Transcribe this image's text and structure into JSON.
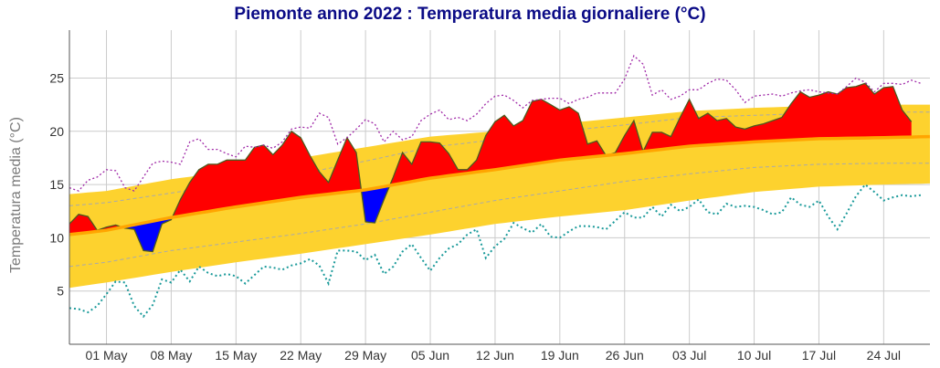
{
  "chart_data": {
    "type": "area",
    "title": "Piemonte anno 2022 : Temperatura media giornaliere (°C)",
    "xlabel": "",
    "ylabel": "Temperatura media (°C)",
    "ylim": [
      0,
      29.5
    ],
    "xlim": [
      "2022-04-27",
      "2022-07-29"
    ],
    "grid": true,
    "y_ticks": [
      5,
      10,
      15,
      20,
      25
    ],
    "x_ticks": [
      {
        "date": "2022-05-01",
        "label": "01 May"
      },
      {
        "date": "2022-05-08",
        "label": "08 May"
      },
      {
        "date": "2022-05-15",
        "label": "15 May"
      },
      {
        "date": "2022-05-22",
        "label": "22 May"
      },
      {
        "date": "2022-05-29",
        "label": "29 May"
      },
      {
        "date": "2022-06-05",
        "label": "05 Jun"
      },
      {
        "date": "2022-06-12",
        "label": "12 Jun"
      },
      {
        "date": "2022-06-19",
        "label": "19 Jun"
      },
      {
        "date": "2022-06-26",
        "label": "26 Jun"
      },
      {
        "date": "2022-07-03",
        "label": "03 Jul"
      },
      {
        "date": "2022-07-10",
        "label": "10 Jul"
      },
      {
        "date": "2022-07-17",
        "label": "17 Jul"
      },
      {
        "date": "2022-07-24",
        "label": "24 Jul"
      }
    ],
    "colors": {
      "band": "#fdd22e",
      "median": "#ffa500",
      "above": "#ff0000",
      "below": "#0000ff",
      "mean_line": "#4b5a1e",
      "max_line": "#a02aa8",
      "min_line": "#1a9a9a",
      "percentile_dashed": "#aaaaaa",
      "grid": "#cccccc"
    },
    "dates": [
      "2022-04-27",
      "2022-04-28",
      "2022-04-29",
      "2022-04-30",
      "2022-05-01",
      "2022-05-02",
      "2022-05-03",
      "2022-05-04",
      "2022-05-05",
      "2022-05-06",
      "2022-05-07",
      "2022-05-08",
      "2022-05-09",
      "2022-05-10",
      "2022-05-11",
      "2022-05-12",
      "2022-05-13",
      "2022-05-14",
      "2022-05-15",
      "2022-05-16",
      "2022-05-17",
      "2022-05-18",
      "2022-05-19",
      "2022-05-20",
      "2022-05-21",
      "2022-05-22",
      "2022-05-23",
      "2022-05-24",
      "2022-05-25",
      "2022-05-26",
      "2022-05-27",
      "2022-05-28",
      "2022-05-29",
      "2022-05-30",
      "2022-05-31",
      "2022-06-01",
      "2022-06-02",
      "2022-06-03",
      "2022-06-04",
      "2022-06-05",
      "2022-06-06",
      "2022-06-07",
      "2022-06-08",
      "2022-06-09",
      "2022-06-10",
      "2022-06-11",
      "2022-06-12",
      "2022-06-13",
      "2022-06-14",
      "2022-06-15",
      "2022-06-16",
      "2022-06-17",
      "2022-06-18",
      "2022-06-19",
      "2022-06-20",
      "2022-06-21",
      "2022-06-22",
      "2022-06-23",
      "2022-06-24",
      "2022-06-25",
      "2022-06-26",
      "2022-06-27",
      "2022-06-28",
      "2022-06-29",
      "2022-06-30",
      "2022-07-01",
      "2022-07-02",
      "2022-07-03",
      "2022-07-04",
      "2022-07-05",
      "2022-07-06",
      "2022-07-07",
      "2022-07-08",
      "2022-07-09",
      "2022-07-10",
      "2022-07-11",
      "2022-07-12",
      "2022-07-13",
      "2022-07-14",
      "2022-07-15",
      "2022-07-16",
      "2022-07-17",
      "2022-07-18",
      "2022-07-19",
      "2022-07-20",
      "2022-07-21",
      "2022-07-22",
      "2022-07-23",
      "2022-07-24",
      "2022-07-25",
      "2022-07-26",
      "2022-07-27",
      "2022-07-28"
    ],
    "series": [
      {
        "key": "mean",
        "values": [
          11.3,
          12.2,
          12.0,
          10.7,
          11.0,
          11.2,
          10.9,
          10.8,
          8.8,
          8.7,
          11.3,
          11.7,
          13.6,
          15.2,
          16.4,
          16.9,
          16.9,
          17.3,
          17.3,
          17.3,
          18.5,
          18.7,
          17.8,
          18.7,
          20.0,
          19.4,
          17.7,
          16.2,
          15.2,
          17.3,
          19.4,
          18.0,
          11.5,
          11.4,
          13.6,
          15.7,
          18.0,
          16.9,
          19.0,
          19.0,
          18.9,
          17.9,
          16.4,
          16.4,
          17.3,
          19.6,
          20.9,
          21.5,
          20.5,
          21.0,
          22.8,
          23.0,
          22.5,
          22.0,
          22.3,
          21.7,
          18.8,
          19.1,
          17.7,
          18.0,
          19.6,
          21.0,
          18.1,
          19.9,
          19.9,
          19.5,
          21.3,
          23.0,
          21.2,
          21.7,
          21.0,
          21.2,
          20.4,
          20.2,
          20.5,
          20.7,
          21.0,
          21.3,
          22.6,
          23.7,
          23.2,
          23.4,
          23.7,
          23.5,
          24.1,
          24.2,
          24.5,
          23.5,
          24.1,
          24.2,
          22.0,
          20.9,
          null
        ]
      },
      {
        "key": "max",
        "values": [
          14.7,
          14.4,
          15.4,
          15.7,
          16.4,
          16.3,
          14.7,
          14.4,
          15.7,
          17.0,
          17.2,
          17.1,
          16.9,
          19.0,
          19.3,
          18.3,
          18.3,
          17.9,
          17.6,
          18.6,
          18.5,
          18.7,
          18.4,
          19.0,
          20.2,
          20.4,
          20.3,
          21.7,
          21.3,
          18.8,
          19.4,
          20.2,
          21.1,
          20.7,
          19.0,
          20.0,
          19.2,
          19.5,
          21.0,
          21.6,
          22.0,
          21.1,
          21.3,
          21.0,
          21.6,
          22.6,
          23.3,
          23.4,
          22.9,
          22.2,
          22.9,
          23.0,
          23.1,
          23.1,
          22.6,
          23.0,
          23.2,
          23.6,
          23.6,
          23.6,
          24.9,
          27.1,
          26.3,
          23.4,
          23.9,
          23.0,
          23.3,
          23.9,
          23.9,
          24.5,
          24.9,
          24.8,
          23.9,
          22.7,
          23.3,
          23.4,
          23.5,
          23.3,
          23.6,
          23.8,
          23.9,
          23.7,
          23.6,
          23.5,
          24.2,
          25.0,
          24.6,
          23.7,
          24.5,
          24.5,
          24.4,
          24.8,
          24.5
        ]
      },
      {
        "key": "min",
        "values": [
          3.4,
          3.3,
          3.0,
          3.6,
          4.7,
          5.9,
          5.8,
          3.6,
          2.6,
          3.7,
          6.1,
          5.8,
          7.0,
          5.9,
          7.3,
          6.7,
          6.4,
          6.6,
          6.4,
          5.7,
          6.5,
          7.3,
          7.2,
          7.0,
          7.4,
          7.6,
          8.0,
          7.4,
          5.7,
          8.8,
          8.8,
          8.7,
          7.9,
          8.4,
          6.6,
          7.3,
          8.7,
          9.4,
          8.1,
          6.9,
          8.1,
          9.0,
          9.4,
          10.3,
          10.8,
          8.1,
          9.2,
          9.9,
          11.4,
          10.9,
          10.5,
          11.3,
          10.1,
          10.0,
          10.6,
          11.1,
          11.1,
          11.0,
          10.8,
          11.6,
          12.4,
          11.9,
          11.9,
          12.9,
          12.0,
          13.1,
          12.5,
          12.9,
          13.6,
          12.4,
          12.2,
          13.2,
          12.9,
          13.0,
          12.9,
          12.6,
          12.2,
          12.4,
          13.8,
          13.1,
          12.9,
          13.5,
          12.0,
          10.8,
          12.3,
          13.9,
          15.0,
          14.3,
          13.5,
          13.8,
          14.0,
          13.9,
          14.0
        ]
      }
    ],
    "climatology": {
      "dates": [
        "2022-04-27",
        "2022-05-01",
        "2022-05-08",
        "2022-05-15",
        "2022-05-22",
        "2022-05-29",
        "2022-06-05",
        "2022-06-12",
        "2022-06-19",
        "2022-06-26",
        "2022-07-03",
        "2022-07-10",
        "2022-07-17",
        "2022-07-24",
        "2022-07-29"
      ],
      "band_low": [
        5.3,
        5.8,
        6.8,
        7.7,
        8.5,
        9.4,
        10.3,
        11.3,
        12.0,
        12.6,
        13.5,
        14.3,
        14.8,
        15.0,
        15.1
      ],
      "dashed_low": [
        7.3,
        7.7,
        8.8,
        9.6,
        10.4,
        11.3,
        12.4,
        13.5,
        14.4,
        15.3,
        16.0,
        16.6,
        16.9,
        17.0,
        17.0
      ],
      "median": [
        10.3,
        10.7,
        11.9,
        12.9,
        13.8,
        14.5,
        15.6,
        16.4,
        17.3,
        17.9,
        18.6,
        19.0,
        19.3,
        19.4,
        19.5
      ],
      "dashed_high": [
        13.0,
        13.3,
        14.2,
        15.1,
        16.0,
        17.2,
        18.5,
        19.2,
        20.0,
        20.6,
        21.3,
        21.5,
        21.7,
        21.8,
        21.8
      ],
      "band_high": [
        14.1,
        14.4,
        15.5,
        16.3,
        17.5,
        18.5,
        19.5,
        20.0,
        20.7,
        21.3,
        21.9,
        22.2,
        22.4,
        22.5,
        22.5
      ]
    }
  }
}
